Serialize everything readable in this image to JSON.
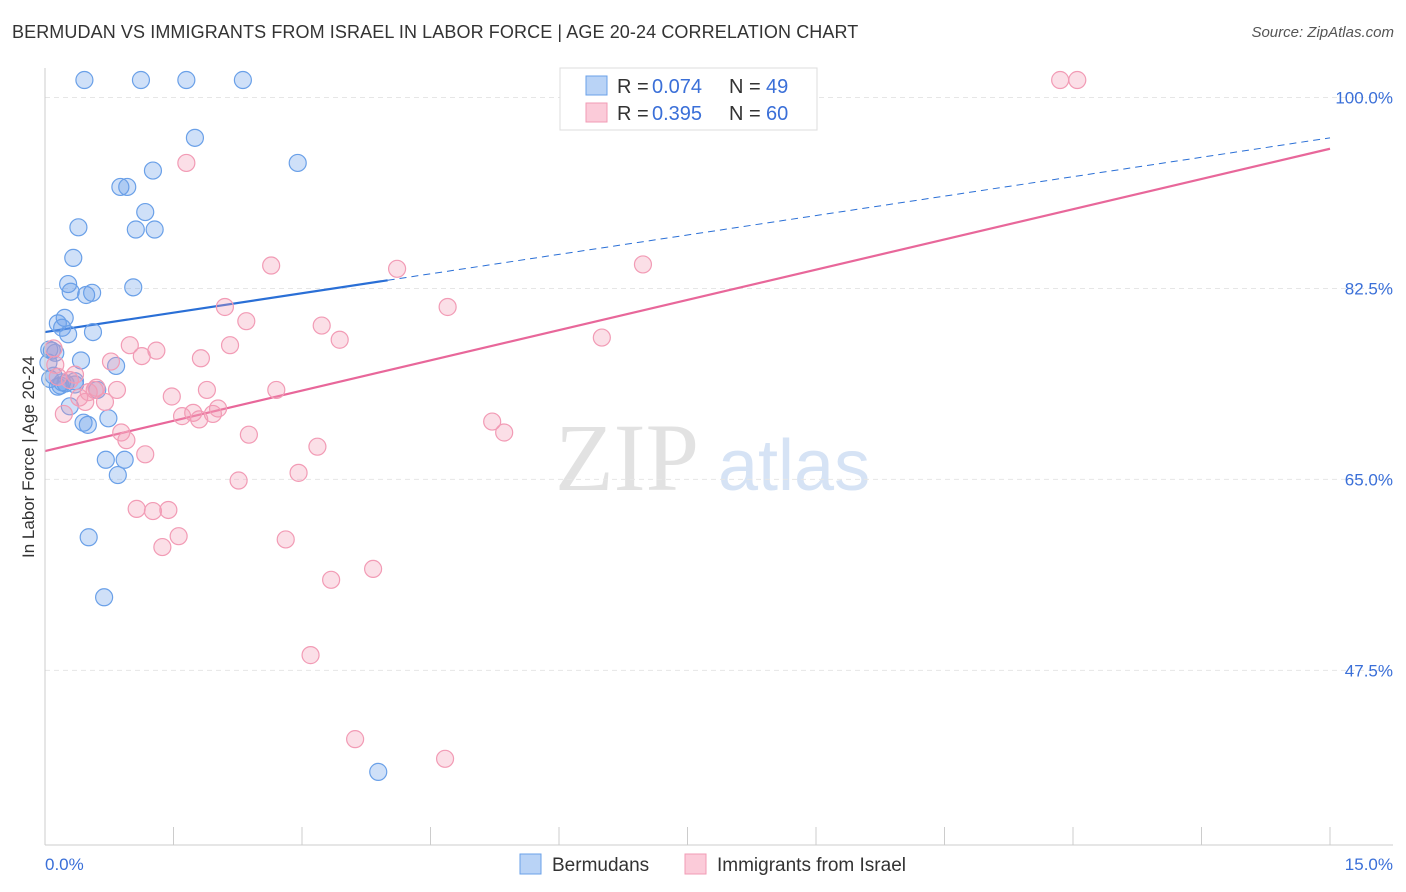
{
  "title": "BERMUDAN VS IMMIGRANTS FROM ISRAEL IN LABOR FORCE | AGE 20-24 CORRELATION CHART",
  "source": "Source: ZipAtlas.com",
  "watermark": {
    "zip": "ZIP",
    "atlas": "atlas"
  },
  "chart_data": {
    "type": "scatter",
    "title": "BERMUDAN VS IMMIGRANTS FROM ISRAEL IN LABOR FORCE | AGE 20-24 CORRELATION CHART",
    "xlabel": "",
    "ylabel": "In Labor Force | Age 20-24",
    "xlim": [
      0,
      15
    ],
    "ylim": [
      31.5,
      102.7
    ],
    "x_tick_labels": [
      {
        "v": 0,
        "label": "0.0%"
      },
      {
        "v": 15,
        "label": "15.0%"
      }
    ],
    "x_minor_ticks": [
      1.5,
      3,
      4.5,
      6,
      7.5,
      9,
      10.5,
      12,
      13.5,
      15
    ],
    "y_ticks": [
      {
        "v": 100,
        "label": "100.0%"
      },
      {
        "v": 82.5,
        "label": "82.5%"
      },
      {
        "v": 65,
        "label": "65.0%"
      },
      {
        "v": 47.5,
        "label": "47.5%"
      }
    ],
    "grid": true,
    "legend_position": "top-center",
    "series": [
      {
        "name": "Bermudans",
        "color": "#6aa0e8",
        "line_color": "#2a6fd6",
        "R": "0.074",
        "N": "49",
        "trend": {
          "x0": 0,
          "y0": 78.5,
          "x1": 15,
          "y1": 96.3,
          "solid_until": 4.0
        },
        "points": [
          [
            0.46,
            101.6
          ],
          [
            1.12,
            101.6
          ],
          [
            1.65,
            101.6
          ],
          [
            2.31,
            101.6
          ],
          [
            1.75,
            96.3
          ],
          [
            2.95,
            94.0
          ],
          [
            1.26,
            93.3
          ],
          [
            0.88,
            91.8
          ],
          [
            0.96,
            91.8
          ],
          [
            1.17,
            89.5
          ],
          [
            0.39,
            88.1
          ],
          [
            1.06,
            87.9
          ],
          [
            1.28,
            87.9
          ],
          [
            0.33,
            85.3
          ],
          [
            0.27,
            82.9
          ],
          [
            0.3,
            82.2
          ],
          [
            0.48,
            81.9
          ],
          [
            0.55,
            82.1
          ],
          [
            1.03,
            82.6
          ],
          [
            0.23,
            79.8
          ],
          [
            0.15,
            79.3
          ],
          [
            0.2,
            78.9
          ],
          [
            0.27,
            78.3
          ],
          [
            0.56,
            78.5
          ],
          [
            0.08,
            76.8
          ],
          [
            0.12,
            76.6
          ],
          [
            0.42,
            75.9
          ],
          [
            0.04,
            75.7
          ],
          [
            0.83,
            75.4
          ],
          [
            0.06,
            74.2
          ],
          [
            0.15,
            73.5
          ],
          [
            0.24,
            73.8
          ],
          [
            0.35,
            73.7
          ],
          [
            0.2,
            73.9
          ],
          [
            0.61,
            73.2
          ],
          [
            0.29,
            71.7
          ],
          [
            0.74,
            70.6
          ],
          [
            0.45,
            70.2
          ],
          [
            0.5,
            70.0
          ],
          [
            0.71,
            66.8
          ],
          [
            0.93,
            66.8
          ],
          [
            0.85,
            65.4
          ],
          [
            0.51,
            59.7
          ],
          [
            0.69,
            54.2
          ],
          [
            3.89,
            38.2
          ],
          [
            0.1,
            74.5
          ],
          [
            0.35,
            74.0
          ],
          [
            0.05,
            76.9
          ],
          [
            0.18,
            73.6
          ]
        ]
      },
      {
        "name": "Immigrants from Israel",
        "color": "#f29bb5",
        "line_color": "#e8679a",
        "R": "0.395",
        "N": "60",
        "trend": {
          "x0": 0,
          "y0": 67.6,
          "x1": 15,
          "y1": 95.3,
          "solid_until": 15
        },
        "points": [
          [
            8.43,
            101.6
          ],
          [
            11.85,
            101.6
          ],
          [
            12.05,
            101.6
          ],
          [
            1.65,
            94.0
          ],
          [
            2.64,
            84.6
          ],
          [
            4.11,
            84.3
          ],
          [
            6.98,
            84.7
          ],
          [
            2.1,
            80.8
          ],
          [
            4.7,
            80.8
          ],
          [
            2.35,
            79.5
          ],
          [
            3.23,
            79.1
          ],
          [
            3.44,
            77.8
          ],
          [
            6.5,
            78.0
          ],
          [
            0.99,
            77.3
          ],
          [
            1.3,
            76.8
          ],
          [
            2.16,
            77.3
          ],
          [
            1.13,
            76.3
          ],
          [
            0.77,
            75.8
          ],
          [
            1.82,
            76.1
          ],
          [
            0.12,
            75.5
          ],
          [
            0.15,
            74.4
          ],
          [
            0.29,
            74.1
          ],
          [
            0.84,
            73.2
          ],
          [
            1.89,
            73.2
          ],
          [
            2.7,
            73.2
          ],
          [
            0.51,
            73.0
          ],
          [
            0.58,
            73.2
          ],
          [
            1.48,
            72.6
          ],
          [
            0.7,
            72.1
          ],
          [
            1.73,
            71.1
          ],
          [
            2.02,
            71.5
          ],
          [
            1.6,
            70.8
          ],
          [
            1.8,
            70.5
          ],
          [
            1.96,
            71.0
          ],
          [
            0.22,
            71.0
          ],
          [
            0.47,
            72.1
          ],
          [
            0.89,
            69.3
          ],
          [
            0.95,
            68.6
          ],
          [
            2.38,
            69.1
          ],
          [
            5.22,
            70.3
          ],
          [
            5.36,
            69.3
          ],
          [
            3.18,
            68.0
          ],
          [
            1.17,
            67.3
          ],
          [
            2.96,
            65.6
          ],
          [
            2.26,
            64.9
          ],
          [
            1.07,
            62.3
          ],
          [
            1.26,
            62.1
          ],
          [
            1.44,
            62.2
          ],
          [
            1.37,
            58.8
          ],
          [
            1.56,
            59.8
          ],
          [
            2.81,
            59.5
          ],
          [
            3.83,
            56.8
          ],
          [
            3.34,
            55.8
          ],
          [
            3.1,
            48.9
          ],
          [
            3.62,
            41.2
          ],
          [
            4.67,
            39.4
          ],
          [
            0.1,
            77.0
          ],
          [
            0.35,
            74.6
          ],
          [
            0.6,
            73.4
          ],
          [
            0.4,
            72.5
          ]
        ]
      }
    ]
  }
}
